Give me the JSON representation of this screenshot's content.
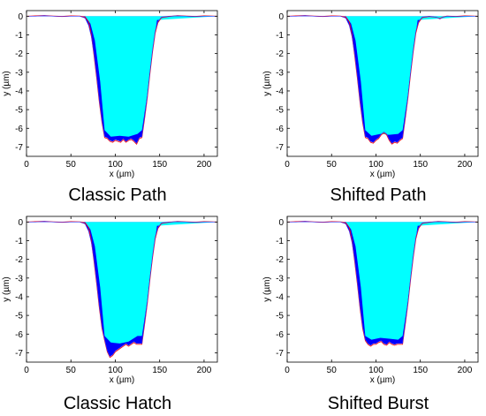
{
  "chart_data": [
    {
      "type": "area",
      "title": "Classic Path",
      "xlabel": "x (µm)",
      "ylabel": "y (µm)",
      "xlim": [
        0,
        215
      ],
      "ylim": [
        -7.5,
        0.3
      ],
      "xticks": [
        0,
        50,
        100,
        150,
        200
      ],
      "yticks": [
        0,
        -1,
        -2,
        -3,
        -4,
        -5,
        -6,
        -7
      ],
      "grid": false,
      "series": [
        {
          "color": "#0000ff",
          "x": [
            0,
            10,
            20,
            30,
            40,
            50,
            60,
            66,
            70,
            73,
            76,
            79,
            82,
            85,
            88,
            91,
            94,
            97,
            100,
            103,
            106,
            109,
            112,
            115,
            118,
            121,
            124,
            127,
            130,
            133,
            136,
            139,
            142,
            145,
            148,
            152,
            160,
            170,
            180,
            190,
            200,
            210,
            215
          ],
          "y": [
            0,
            0,
            0.03,
            0,
            -0.02,
            0,
            0,
            -0.1,
            -0.5,
            -1.1,
            -2.0,
            -3.2,
            -4.5,
            -5.6,
            -6.45,
            -6.5,
            -6.65,
            -6.7,
            -6.6,
            -6.65,
            -6.7,
            -6.55,
            -6.7,
            -6.6,
            -6.55,
            -6.65,
            -6.8,
            -6.5,
            -6.45,
            -5.4,
            -4.3,
            -3.0,
            -1.8,
            -0.8,
            -0.3,
            -0.05,
            0,
            0.02,
            0,
            -0.02,
            0,
            0,
            0
          ]
        },
        {
          "color": "#00ffff",
          "x": [
            0,
            66,
            72,
            77,
            83,
            88,
            95,
            105,
            115,
            125,
            130,
            136,
            142,
            147,
            215
          ],
          "y": [
            0,
            0,
            -0.4,
            -1.3,
            -3.5,
            -6.1,
            -6.45,
            -6.4,
            -6.45,
            -6.3,
            -6.1,
            -4.2,
            -1.8,
            -0.2,
            0
          ]
        },
        {
          "color": "#ff0000",
          "x": [
            0,
            10,
            20,
            30,
            40,
            50,
            60,
            66,
            70,
            73,
            76,
            79,
            82,
            85,
            88,
            91,
            94,
            97,
            100,
            103,
            106,
            109,
            112,
            115,
            118,
            121,
            124,
            127,
            130,
            133,
            136,
            139,
            142,
            145,
            148,
            152,
            160,
            170,
            180,
            190,
            200,
            210,
            215
          ],
          "y": [
            0,
            0.02,
            0.04,
            0.01,
            -0.01,
            0.02,
            0.01,
            -0.05,
            -0.3,
            -1.0,
            -2.1,
            -3.3,
            -4.6,
            -5.7,
            -6.5,
            -6.55,
            -6.7,
            -6.75,
            -6.65,
            -6.7,
            -6.75,
            -6.6,
            -6.75,
            -6.65,
            -6.6,
            -6.7,
            -6.85,
            -6.55,
            -6.5,
            -5.5,
            -4.4,
            -3.1,
            -1.9,
            -0.9,
            -0.35,
            -0.08,
            -0.02,
            0.03,
            0.01,
            -0.01,
            0.02,
            0.01,
            0
          ]
        }
      ]
    },
    {
      "type": "area",
      "title": "Shifted Path",
      "xlabel": "x (µm)",
      "ylabel": "y (µm)",
      "xlim": [
        0,
        215
      ],
      "ylim": [
        -7.5,
        0.3
      ],
      "xticks": [
        0,
        50,
        100,
        150,
        200
      ],
      "yticks": [
        0,
        -1,
        -2,
        -3,
        -4,
        -5,
        -6,
        -7
      ],
      "grid": false,
      "series": [
        {
          "color": "#0000ff",
          "x": [
            0,
            10,
            20,
            30,
            40,
            50,
            60,
            66,
            70,
            73,
            76,
            79,
            82,
            85,
            88,
            91,
            94,
            97,
            100,
            103,
            106,
            109,
            112,
            115,
            118,
            121,
            124,
            127,
            130,
            133,
            136,
            139,
            142,
            145,
            148,
            152,
            160,
            168,
            172,
            176,
            180,
            190,
            200,
            210,
            215
          ],
          "y": [
            0,
            0,
            0.03,
            0,
            -0.02,
            0,
            0,
            -0.1,
            -0.5,
            -1.1,
            -2.0,
            -3.2,
            -4.5,
            -5.6,
            -6.45,
            -6.5,
            -6.7,
            -6.75,
            -6.6,
            -6.5,
            -6.3,
            -6.2,
            -6.3,
            -6.6,
            -6.8,
            -6.7,
            -6.75,
            -6.6,
            -6.5,
            -5.4,
            -4.3,
            -3.0,
            -1.8,
            -0.8,
            -0.3,
            -0.05,
            0,
            -0.05,
            -0.15,
            -0.05,
            0,
            -0.02,
            0,
            0,
            0
          ]
        },
        {
          "color": "#00ffff",
          "x": [
            0,
            66,
            72,
            77,
            83,
            88,
            95,
            105,
            115,
            125,
            130,
            136,
            142,
            147,
            215
          ],
          "y": [
            0,
            0,
            -0.4,
            -1.3,
            -3.5,
            -6.1,
            -6.4,
            -6.3,
            -6.35,
            -6.3,
            -6.1,
            -4.2,
            -1.8,
            -0.2,
            0
          ]
        },
        {
          "color": "#ff0000",
          "x": [
            0,
            10,
            20,
            30,
            40,
            50,
            60,
            66,
            70,
            73,
            76,
            79,
            82,
            85,
            88,
            91,
            94,
            97,
            100,
            103,
            106,
            109,
            112,
            115,
            118,
            121,
            124,
            127,
            130,
            133,
            136,
            139,
            142,
            145,
            148,
            152,
            160,
            168,
            172,
            176,
            180,
            190,
            200,
            210,
            215
          ],
          "y": [
            0,
            0.02,
            0.04,
            0.01,
            -0.01,
            0.02,
            0.01,
            -0.05,
            -0.3,
            -1.0,
            -2.1,
            -3.3,
            -4.6,
            -5.7,
            -6.5,
            -6.55,
            -6.75,
            -6.8,
            -6.65,
            -6.55,
            -6.35,
            -6.25,
            -6.35,
            -6.65,
            -6.85,
            -6.75,
            -6.8,
            -6.65,
            -6.55,
            -5.5,
            -4.4,
            -3.1,
            -1.9,
            -0.9,
            -0.35,
            -0.08,
            -0.02,
            -0.06,
            -0.12,
            -0.04,
            0.01,
            -0.01,
            0.02,
            0.01,
            0
          ]
        }
      ]
    },
    {
      "type": "area",
      "title": "Classic Hatch",
      "xlabel": "x (µm)",
      "ylabel": "y (µm)",
      "xlim": [
        0,
        215
      ],
      "ylim": [
        -7.5,
        0.3
      ],
      "xticks": [
        0,
        50,
        100,
        150,
        200
      ],
      "yticks": [
        0,
        -1,
        -2,
        -3,
        -4,
        -5,
        -6,
        -7
      ],
      "grid": false,
      "series": [
        {
          "color": "#0000ff",
          "x": [
            0,
            10,
            20,
            30,
            40,
            50,
            60,
            66,
            70,
            73,
            76,
            79,
            82,
            85,
            88,
            91,
            94,
            97,
            100,
            103,
            106,
            109,
            112,
            115,
            118,
            121,
            124,
            127,
            130,
            133,
            136,
            139,
            142,
            145,
            148,
            152,
            160,
            170,
            180,
            190,
            200,
            210,
            215
          ],
          "y": [
            0,
            0,
            0.03,
            0,
            -0.02,
            0,
            0,
            -0.1,
            -0.5,
            -1.1,
            -2.0,
            -3.2,
            -4.5,
            -5.6,
            -6.3,
            -6.9,
            -7.2,
            -7.1,
            -6.9,
            -6.8,
            -6.7,
            -6.6,
            -6.5,
            -6.6,
            -6.5,
            -6.4,
            -6.5,
            -6.5,
            -6.5,
            -5.4,
            -4.3,
            -3.0,
            -1.8,
            -0.8,
            -0.3,
            -0.05,
            0,
            0.02,
            0,
            -0.02,
            0,
            0,
            0
          ]
        },
        {
          "color": "#00ffff",
          "x": [
            0,
            66,
            72,
            77,
            83,
            88,
            95,
            105,
            115,
            125,
            130,
            136,
            142,
            147,
            215
          ],
          "y": [
            0,
            0,
            -0.4,
            -1.3,
            -3.5,
            -6.1,
            -6.45,
            -6.5,
            -6.4,
            -6.1,
            -6.1,
            -4.2,
            -1.8,
            -0.2,
            0
          ]
        },
        {
          "color": "#ff0000",
          "x": [
            0,
            10,
            20,
            30,
            40,
            50,
            60,
            66,
            70,
            73,
            76,
            79,
            82,
            85,
            88,
            91,
            94,
            97,
            100,
            103,
            106,
            109,
            112,
            115,
            118,
            121,
            124,
            127,
            130,
            133,
            136,
            139,
            142,
            145,
            148,
            152,
            160,
            170,
            180,
            190,
            200,
            210,
            215
          ],
          "y": [
            0,
            0.02,
            0.04,
            0.01,
            -0.01,
            0.02,
            0.01,
            -0.05,
            -0.3,
            -1.0,
            -2.1,
            -3.3,
            -4.6,
            -5.7,
            -6.35,
            -6.95,
            -7.25,
            -7.15,
            -6.95,
            -6.85,
            -6.75,
            -6.65,
            -6.55,
            -6.65,
            -6.55,
            -6.45,
            -6.55,
            -6.55,
            -6.55,
            -5.5,
            -4.4,
            -3.1,
            -1.9,
            -0.9,
            -0.35,
            -0.08,
            -0.02,
            0.03,
            0.01,
            -0.01,
            0.02,
            0.01,
            0
          ]
        }
      ]
    },
    {
      "type": "area",
      "title": "Shifted Burst",
      "xlabel": "x (µm)",
      "ylabel": "y (µm)",
      "xlim": [
        0,
        215
      ],
      "ylim": [
        -7.5,
        0.3
      ],
      "xticks": [
        0,
        50,
        100,
        150,
        200
      ],
      "yticks": [
        0,
        -1,
        -2,
        -3,
        -4,
        -5,
        -6,
        -7
      ],
      "grid": false,
      "series": [
        {
          "color": "#0000ff",
          "x": [
            0,
            10,
            20,
            30,
            40,
            50,
            60,
            66,
            70,
            73,
            76,
            79,
            82,
            85,
            88,
            91,
            94,
            97,
            100,
            103,
            106,
            109,
            112,
            115,
            118,
            121,
            124,
            127,
            130,
            133,
            136,
            139,
            142,
            145,
            148,
            152,
            160,
            170,
            180,
            190,
            200,
            210,
            215
          ],
          "y": [
            0,
            0,
            0.03,
            0,
            -0.02,
            0,
            0,
            -0.1,
            -0.5,
            -1.1,
            -2.0,
            -3.2,
            -4.5,
            -5.6,
            -6.3,
            -6.5,
            -6.6,
            -6.5,
            -6.5,
            -6.4,
            -6.35,
            -6.5,
            -6.55,
            -6.4,
            -6.5,
            -6.55,
            -6.5,
            -6.5,
            -6.5,
            -5.4,
            -4.3,
            -3.0,
            -1.8,
            -0.8,
            -0.3,
            -0.05,
            0,
            0.02,
            0,
            -0.02,
            0,
            0,
            0
          ]
        },
        {
          "color": "#00ffff",
          "x": [
            0,
            66,
            72,
            77,
            83,
            88,
            95,
            105,
            115,
            125,
            130,
            136,
            142,
            147,
            215
          ],
          "y": [
            0,
            0,
            -0.4,
            -1.3,
            -3.5,
            -6.1,
            -6.3,
            -6.2,
            -6.25,
            -6.3,
            -6.1,
            -4.2,
            -1.8,
            -0.2,
            0
          ]
        },
        {
          "color": "#ff0000",
          "x": [
            0,
            10,
            20,
            30,
            40,
            50,
            60,
            66,
            70,
            73,
            76,
            79,
            82,
            85,
            88,
            91,
            94,
            97,
            100,
            103,
            106,
            109,
            112,
            115,
            118,
            121,
            124,
            127,
            130,
            133,
            136,
            139,
            142,
            145,
            148,
            152,
            160,
            170,
            180,
            190,
            200,
            210,
            215
          ],
          "y": [
            0,
            0.02,
            0.04,
            0.01,
            -0.01,
            0.02,
            0.01,
            -0.05,
            -0.3,
            -1.0,
            -2.1,
            -3.3,
            -4.6,
            -5.7,
            -6.35,
            -6.55,
            -6.65,
            -6.55,
            -6.55,
            -6.45,
            -6.4,
            -6.55,
            -6.6,
            -6.45,
            -6.55,
            -6.6,
            -6.55,
            -6.55,
            -6.55,
            -5.5,
            -4.4,
            -3.1,
            -1.9,
            -0.9,
            -0.35,
            -0.08,
            -0.02,
            0.03,
            0.01,
            -0.01,
            0.02,
            0.01,
            0
          ]
        }
      ]
    }
  ]
}
